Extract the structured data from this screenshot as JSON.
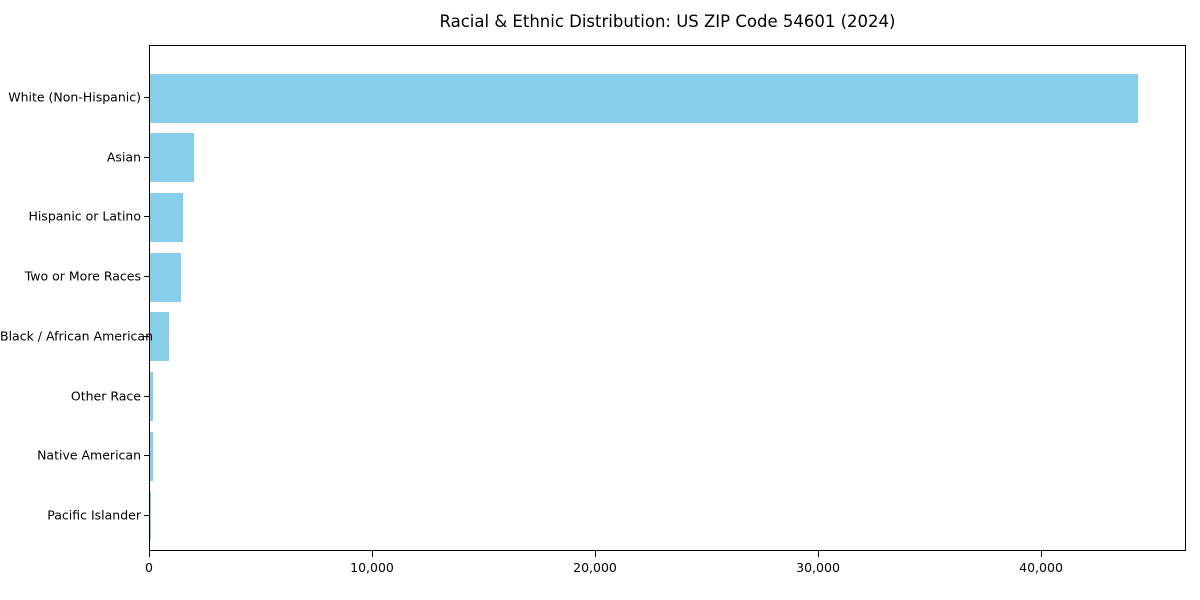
{
  "title": "Racial & Ethnic Distribution: US ZIP Code 54601 (2024)",
  "colors": {
    "bar": "#87CEEB",
    "axis": "#000000",
    "background": "#ffffff",
    "text": "#000000"
  },
  "chart_data": {
    "type": "bar",
    "orientation": "horizontal",
    "title": "Racial & Ethnic Distribution: US ZIP Code 54601 (2024)",
    "categories": [
      "White (Non-Hispanic)",
      "Asian",
      "Hispanic or Latino",
      "Two or More Races",
      "Black / African American",
      "Other Race",
      "Native American",
      "Pacific Islander"
    ],
    "values": [
      44300,
      1960,
      1470,
      1390,
      870,
      140,
      130,
      20
    ],
    "xlabel": "",
    "ylabel": "",
    "xlim": [
      0,
      46500
    ],
    "x_ticks": [
      0,
      10000,
      20000,
      30000,
      40000
    ],
    "x_tick_labels": [
      "0",
      "10,000",
      "20,000",
      "30,000",
      "40,000"
    ],
    "grid": false,
    "legend": null,
    "bar_color": "#87CEEB",
    "sort_order": "descending"
  }
}
